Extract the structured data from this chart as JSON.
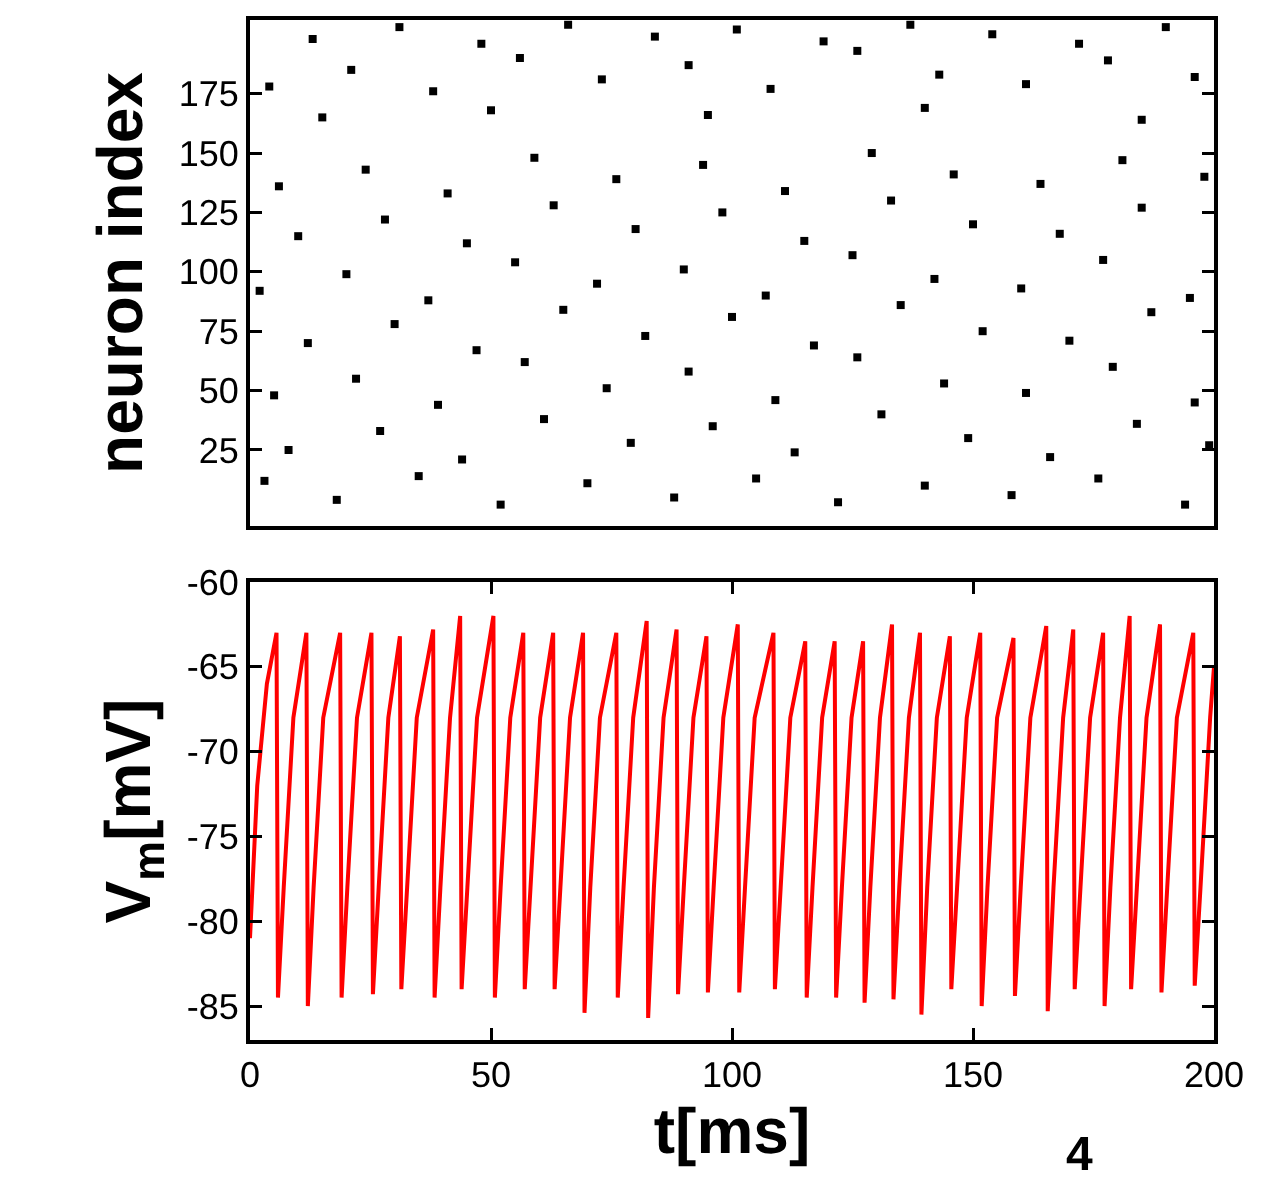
{
  "chart_data": [
    {
      "type": "scatter",
      "ylabel": "neuron index",
      "xlim": [
        0,
        200
      ],
      "ylim": [
        -7,
        206
      ],
      "yticks": [
        25,
        50,
        75,
        100,
        125,
        150,
        175
      ],
      "tick_labels": "y",
      "grid": false,
      "marker": "square",
      "x": [
        3,
        18,
        35,
        52,
        70,
        88,
        105,
        122,
        140,
        158,
        176,
        194,
        8,
        27,
        44,
        61,
        79,
        96,
        113,
        131,
        149,
        166,
        184,
        199,
        5,
        22,
        39,
        57,
        74,
        91,
        109,
        126,
        144,
        161,
        179,
        196,
        12,
        30,
        47,
        65,
        82,
        100,
        117,
        135,
        152,
        170,
        187,
        2,
        20,
        37,
        55,
        72,
        90,
        107,
        125,
        142,
        160,
        177,
        195,
        10,
        28,
        45,
        63,
        80,
        98,
        115,
        133,
        150,
        168,
        185,
        6,
        24,
        41,
        59,
        76,
        94,
        111,
        129,
        146,
        164,
        181,
        198,
        15,
        50,
        95,
        140,
        185,
        4,
        21,
        38,
        56,
        73,
        91,
        108,
        126,
        143,
        161,
        178,
        196,
        13,
        31,
        48,
        66,
        84,
        101,
        119,
        137,
        154,
        172,
        190
      ],
      "series": [
        {
          "color": "#000000",
          "values": [
            12,
            4,
            14,
            2,
            11,
            5,
            13,
            3,
            10,
            6,
            13,
            2,
            25,
            33,
            21,
            38,
            28,
            35,
            24,
            40,
            30,
            22,
            36,
            27,
            48,
            55,
            44,
            62,
            51,
            58,
            46,
            64,
            53,
            49,
            60,
            45,
            70,
            78,
            67,
            84,
            73,
            81,
            69,
            86,
            75,
            71,
            83,
            92,
            99,
            88,
            104,
            95,
            101,
            90,
            107,
            97,
            93,
            105,
            89,
            115,
            122,
            112,
            128,
            118,
            125,
            113,
            130,
            120,
            116,
            127,
            136,
            143,
            133,
            148,
            139,
            145,
            134,
            150,
            141,
            137,
            147,
            140,
            165,
            168,
            166,
            169,
            164,
            178,
            185,
            176,
            190,
            181,
            187,
            177,
            193,
            183,
            179,
            189,
            182,
            198,
            203,
            196,
            204,
            199,
            202,
            197,
            204,
            200,
            196,
            203
          ]
        }
      ]
    },
    {
      "type": "line",
      "xlabel": "t[ms]",
      "ylabel": "V$_{m}$[mV]",
      "annotations": [
        "4"
      ],
      "xlim": [
        0,
        200
      ],
      "ylim": [
        -87,
        -60
      ],
      "xticks": [
        0,
        50,
        100,
        150,
        200
      ],
      "yticks": [
        -60,
        -65,
        -70,
        -75,
        -80,
        -85
      ],
      "grid": false,
      "marker": "none",
      "line_style": "solid",
      "x": [
        0,
        1.5,
        3.5,
        5.5,
        5.8,
        7.0,
        9.0,
        11.7,
        12.0,
        13.2,
        15.2,
        18.7,
        19.0,
        20.2,
        22.2,
        25.2,
        25.5,
        26.7,
        28.7,
        31.1,
        31.4,
        32.6,
        34.6,
        38.0,
        38.3,
        39.5,
        41.5,
        43.6,
        43.9,
        45.1,
        47.1,
        50.5,
        50.8,
        52.0,
        54.0,
        56.7,
        57.0,
        58.2,
        60.2,
        62.9,
        63.2,
        64.4,
        66.4,
        69.1,
        69.4,
        70.6,
        72.6,
        76.0,
        76.3,
        77.5,
        79.5,
        82.3,
        82.6,
        83.8,
        85.8,
        88.5,
        88.8,
        90.0,
        92.0,
        94.7,
        95.0,
        96.2,
        98.2,
        101.2,
        101.5,
        102.7,
        104.7,
        108.6,
        108.9,
        110.1,
        112.1,
        115.2,
        115.5,
        116.7,
        118.7,
        121.3,
        121.6,
        122.8,
        124.8,
        127.2,
        127.5,
        128.7,
        130.7,
        133.2,
        133.5,
        134.7,
        136.7,
        139.0,
        139.3,
        140.5,
        142.5,
        145.2,
        145.5,
        146.7,
        148.7,
        151.5,
        151.8,
        153.0,
        155.0,
        158.4,
        158.7,
        159.9,
        161.9,
        165.2,
        165.5,
        166.7,
        168.7,
        170.8,
        171.1,
        172.3,
        174.3,
        177.0,
        177.3,
        178.5,
        180.5,
        182.5,
        182.8,
        184.0,
        186.0,
        188.8,
        189.1,
        190.3,
        192.3,
        195.7,
        196.0,
        197.2,
        199.2,
        200
      ],
      "series": [
        {
          "color": "#ff0000",
          "values": [
            -81,
            -72,
            -66,
            -63,
            -84.5,
            -78,
            -68,
            -63,
            -85,
            -78,
            -68,
            -63,
            -84.5,
            -78,
            -68,
            -63,
            -84.3,
            -78,
            -68,
            -63.2,
            -84,
            -78,
            -68,
            -62.8,
            -84.5,
            -78,
            -68,
            -62,
            -84,
            -78,
            -68,
            -62,
            -84.5,
            -78,
            -68,
            -63,
            -84,
            -78,
            -68,
            -63,
            -84,
            -78,
            -68,
            -63,
            -85.4,
            -78,
            -68,
            -63,
            -84.5,
            -78,
            -68,
            -62.3,
            -85.7,
            -78,
            -68,
            -62.8,
            -84.3,
            -78,
            -68,
            -63.2,
            -84.2,
            -78,
            -68,
            -62.5,
            -84.2,
            -78,
            -68,
            -63,
            -84,
            -78,
            -68,
            -63.5,
            -84.5,
            -78,
            -68,
            -63.5,
            -84.5,
            -78,
            -68,
            -63.5,
            -84.8,
            -78,
            -68,
            -62.5,
            -84.6,
            -78,
            -68,
            -63,
            -85.5,
            -78,
            -68,
            -63.2,
            -84,
            -78,
            -68,
            -63,
            -85,
            -78,
            -68,
            -63.3,
            -84.4,
            -78,
            -68,
            -62.6,
            -85.3,
            -78,
            -68,
            -62.8,
            -84,
            -78,
            -68,
            -63,
            -85,
            -78,
            -68,
            -62,
            -84,
            -78,
            -68,
            -62.5,
            -84.2,
            -78,
            -68,
            -63,
            -83.8,
            -78,
            -68,
            -65
          ]
        }
      ]
    }
  ]
}
